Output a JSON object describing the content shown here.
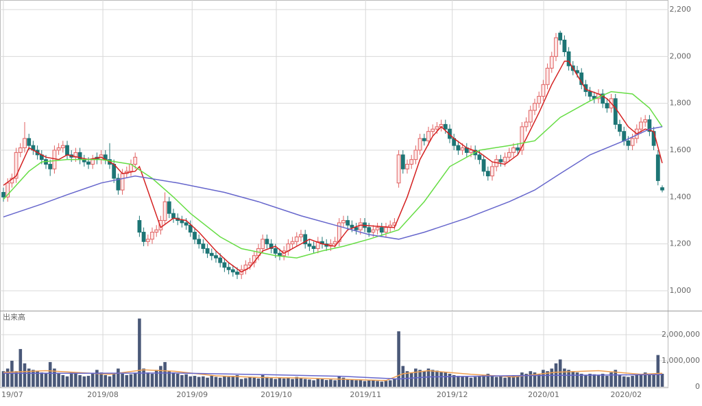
{
  "chart_data": {
    "type": "candlestick",
    "ylim": [
      915,
      2241
    ],
    "yticks": [
      {
        "value": 1000,
        "label": "1,000"
      },
      {
        "value": 1200,
        "label": "1,200"
      },
      {
        "value": 1400,
        "label": "1,400"
      },
      {
        "value": 1600,
        "label": "1,600"
      },
      {
        "value": 1800,
        "label": "1,800"
      },
      {
        "value": 2000,
        "label": "2,000"
      },
      {
        "value": 2200,
        "label": "2,200"
      }
    ],
    "xticks": [
      {
        "value": 0,
        "label": "19/07"
      },
      {
        "value": 23.4,
        "label": "2019/08"
      },
      {
        "value": 44.4,
        "label": "2019/09"
      },
      {
        "value": 64.2,
        "label": "2019/10"
      },
      {
        "value": 85.2,
        "label": "2019/11"
      },
      {
        "value": 105.6,
        "label": "2019/12"
      },
      {
        "value": 127.1,
        "label": "2020/01"
      },
      {
        "value": 146.5,
        "label": "2020/02"
      }
    ],
    "grid": true,
    "up_color": "#e06060",
    "down_color": "#1d7575",
    "open": [
      1420,
      1400,
      1460,
      1480,
      1590,
      1610,
      1650,
      1620,
      1600,
      1580,
      1560,
      1540,
      1520,
      1600,
      1610,
      1620,
      1580,
      1570,
      1590,
      1560,
      1550,
      1540,
      1570,
      1560,
      1580,
      1560,
      1540,
      1480,
      1430,
      1500,
      1510,
      1540,
      1300,
      1250,
      1210,
      1220,
      1250,
      1260,
      1300,
      1380,
      1330,
      1310,
      1300,
      1290,
      1280,
      1250,
      1220,
      1200,
      1180,
      1160,
      1150,
      1140,
      1120,
      1100,
      1090,
      1080,
      1070,
      1090,
      1110,
      1120,
      1150,
      1180,
      1220,
      1200,
      1180,
      1160,
      1150,
      1170,
      1200,
      1210,
      1230,
      1240,
      1200,
      1190,
      1180,
      1210,
      1200,
      1190,
      1200,
      1210,
      1290,
      1300,
      1280,
      1270,
      1260,
      1290,
      1270,
      1250,
      1260,
      1270,
      1250,
      1270,
      1280,
      1460,
      1580,
      1520,
      1540,
      1560,
      1600,
      1650,
      1640,
      1680,
      1690,
      1700,
      1710,
      1690,
      1650,
      1620,
      1600,
      1610,
      1590,
      1600,
      1580,
      1560,
      1510,
      1490,
      1530,
      1560,
      1550,
      1570,
      1590,
      1610,
      1600,
      1700,
      1720,
      1770,
      1800,
      1830,
      1880,
      1950,
      2000,
      2100,
      2070,
      2020,
      1960,
      1940,
      1930,
      1880,
      1850,
      1830,
      1820,
      1840,
      1800,
      1780,
      1820,
      1710,
      1680,
      1640,
      1620,
      1650,
      1690,
      1720,
      1730,
      1680,
      1580,
      1440
    ],
    "high": [
      1440,
      1480,
      1500,
      1610,
      1630,
      1720,
      1670,
      1640,
      1620,
      1600,
      1580,
      1560,
      1620,
      1630,
      1640,
      1640,
      1600,
      1610,
      1610,
      1580,
      1570,
      1580,
      1590,
      1600,
      1600,
      1630,
      1560,
      1500,
      1520,
      1530,
      1560,
      1590,
      1320,
      1270,
      1240,
      1270,
      1280,
      1320,
      1420,
      1400,
      1350,
      1330,
      1320,
      1310,
      1300,
      1270,
      1240,
      1220,
      1200,
      1180,
      1170,
      1160,
      1140,
      1120,
      1110,
      1100,
      1110,
      1130,
      1140,
      1170,
      1200,
      1240,
      1240,
      1220,
      1200,
      1180,
      1190,
      1220,
      1230,
      1250,
      1260,
      1260,
      1220,
      1210,
      1230,
      1230,
      1220,
      1220,
      1230,
      1310,
      1320,
      1320,
      1300,
      1290,
      1310,
      1310,
      1290,
      1280,
      1290,
      1290,
      1290,
      1300,
      1310,
      1600,
      1600,
      1560,
      1580,
      1620,
      1670,
      1670,
      1700,
      1710,
      1720,
      1730,
      1730,
      1710,
      1670,
      1640,
      1630,
      1630,
      1620,
      1620,
      1600,
      1580,
      1530,
      1550,
      1580,
      1580,
      1590,
      1610,
      1630,
      1630,
      1720,
      1740,
      1790,
      1820,
      1850,
      1900,
      1970,
      2020,
      2100,
      2110,
      2090,
      2040,
      1980,
      1960,
      1950,
      1900,
      1870,
      1850,
      1860,
      1860,
      1820,
      1840,
      1840,
      1730,
      1700,
      1660,
      1670,
      1710,
      1740,
      1750,
      1750,
      1700,
      1600,
      1450
    ],
    "low": [
      1380,
      1380,
      1440,
      1460,
      1570,
      1590,
      1600,
      1580,
      1560,
      1540,
      1520,
      1490,
      1500,
      1580,
      1590,
      1560,
      1550,
      1550,
      1540,
      1530,
      1520,
      1520,
      1540,
      1540,
      1540,
      1520,
      1460,
      1410,
      1410,
      1480,
      1490,
      1520,
      1230,
      1190,
      1190,
      1200,
      1230,
      1240,
      1280,
      1310,
      1290,
      1280,
      1270,
      1260,
      1230,
      1200,
      1180,
      1160,
      1140,
      1130,
      1120,
      1100,
      1080,
      1070,
      1060,
      1050,
      1050,
      1070,
      1090,
      1100,
      1130,
      1160,
      1180,
      1160,
      1140,
      1130,
      1130,
      1150,
      1180,
      1190,
      1210,
      1180,
      1170,
      1160,
      1160,
      1180,
      1170,
      1170,
      1180,
      1190,
      1270,
      1260,
      1250,
      1240,
      1240,
      1250,
      1230,
      1230,
      1240,
      1230,
      1230,
      1250,
      1260,
      1440,
      1500,
      1500,
      1520,
      1540,
      1580,
      1620,
      1620,
      1660,
      1670,
      1680,
      1670,
      1630,
      1600,
      1580,
      1580,
      1570,
      1570,
      1560,
      1540,
      1490,
      1470,
      1470,
      1510,
      1530,
      1530,
      1550,
      1570,
      1580,
      1580,
      1680,
      1700,
      1750,
      1780,
      1810,
      1860,
      1930,
      1980,
      2050,
      2000,
      1940,
      1920,
      1910,
      1860,
      1830,
      1810,
      1800,
      1800,
      1780,
      1760,
      1760,
      1690,
      1660,
      1620,
      1600,
      1600,
      1630,
      1670,
      1700,
      1660,
      1600,
      1450,
      1420
    ],
    "close": [
      1400,
      1460,
      1480,
      1590,
      1610,
      1650,
      1620,
      1600,
      1580,
      1560,
      1540,
      1520,
      1600,
      1610,
      1620,
      1580,
      1570,
      1590,
      1560,
      1550,
      1540,
      1560,
      1560,
      1580,
      1560,
      1540,
      1480,
      1430,
      1500,
      1510,
      1540,
      1570,
      1250,
      1210,
      1220,
      1250,
      1260,
      1300,
      1380,
      1330,
      1310,
      1300,
      1290,
      1280,
      1250,
      1220,
      1200,
      1180,
      1160,
      1150,
      1140,
      1120,
      1100,
      1090,
      1080,
      1070,
      1090,
      1110,
      1120,
      1150,
      1180,
      1220,
      1200,
      1180,
      1160,
      1150,
      1170,
      1200,
      1210,
      1230,
      1240,
      1200,
      1190,
      1180,
      1210,
      1200,
      1190,
      1200,
      1210,
      1290,
      1300,
      1280,
      1270,
      1260,
      1290,
      1270,
      1250,
      1260,
      1270,
      1250,
      1270,
      1280,
      1290,
      1580,
      1520,
      1540,
      1560,
      1600,
      1650,
      1640,
      1680,
      1690,
      1700,
      1710,
      1690,
      1650,
      1620,
      1600,
      1610,
      1590,
      1600,
      1580,
      1560,
      1510,
      1490,
      1530,
      1560,
      1550,
      1570,
      1590,
      1610,
      1600,
      1700,
      1720,
      1770,
      1800,
      1830,
      1880,
      1950,
      2000,
      2080,
      2070,
      2020,
      1960,
      1940,
      1930,
      1880,
      1850,
      1830,
      1820,
      1840,
      1800,
      1780,
      1820,
      1710,
      1680,
      1640,
      1620,
      1650,
      1690,
      1720,
      1730,
      1680,
      1620,
      1470,
      1430
    ],
    "moving_averages": [
      {
        "color": "#d42020",
        "x": [
          0,
          3,
          6,
          10,
          13,
          15,
          20,
          23,
          26,
          28,
          31,
          32,
          37,
          40,
          43,
          46,
          50,
          53,
          56,
          58,
          61,
          64,
          66,
          69,
          72,
          75,
          78,
          81,
          84,
          88,
          92,
          95,
          98,
          101,
          103,
          106,
          109,
          112,
          115,
          118,
          121,
          123,
          126,
          129,
          132,
          133,
          135,
          137,
          140,
          142,
          144,
          147,
          149,
          151,
          153,
          155
        ],
        "values": [
          1450,
          1490,
          1610,
          1570,
          1560,
          1580,
          1560,
          1570,
          1540,
          1500,
          1510,
          1530,
          1270,
          1310,
          1300,
          1250,
          1170,
          1120,
          1080,
          1100,
          1170,
          1190,
          1160,
          1190,
          1220,
          1200,
          1190,
          1260,
          1280,
          1275,
          1270,
          1400,
          1560,
          1660,
          1700,
          1650,
          1610,
          1590,
          1550,
          1540,
          1580,
          1650,
          1760,
          1880,
          1980,
          1980,
          1920,
          1860,
          1840,
          1820,
          1780,
          1700,
          1670,
          1690,
          1680,
          1545
        ]
      },
      {
        "color": "#66dd44",
        "x": [
          0,
          6,
          9,
          15,
          23,
          30,
          35,
          40,
          44,
          51,
          56,
          64,
          69,
          75,
          80,
          86,
          93,
          99,
          105,
          112,
          119,
          125,
          131,
          138,
          143,
          148,
          152,
          155
        ],
        "values": [
          1390,
          1510,
          1550,
          1560,
          1560,
          1540,
          1480,
          1400,
          1330,
          1230,
          1180,
          1150,
          1140,
          1170,
          1190,
          1220,
          1260,
          1380,
          1530,
          1600,
          1620,
          1640,
          1740,
          1810,
          1850,
          1840,
          1780,
          1700
        ]
      },
      {
        "color": "#6666cc",
        "x": [
          0,
          9,
          15,
          23,
          31,
          41,
          52,
          60,
          70,
          80,
          86,
          93,
          99,
          109,
          119,
          125,
          131,
          138,
          146,
          152,
          155
        ],
        "values": [
          1315,
          1370,
          1410,
          1460,
          1490,
          1460,
          1420,
          1380,
          1320,
          1270,
          1240,
          1220,
          1250,
          1310,
          1380,
          1430,
          1500,
          1580,
          1640,
          1690,
          1700
        ]
      }
    ],
    "volume": {
      "label": "出来高",
      "color": "#4a5878",
      "ylim": [
        0,
        2870000
      ],
      "yticks": [
        0,
        {
          "value": 1000000,
          "label": "1,000,000"
        },
        {
          "value": 2000000,
          "label": "2,000,000"
        }
      ],
      "values": [
        600000,
        700000,
        1000000,
        600000,
        1450000,
        900000,
        700000,
        650000,
        600000,
        550000,
        500000,
        950000,
        700000,
        500000,
        450000,
        400000,
        550000,
        500000,
        450000,
        400000,
        420000,
        500000,
        650000,
        550000,
        450000,
        400000,
        500000,
        700000,
        500000,
        450000,
        480000,
        520000,
        2620000,
        700000,
        550000,
        500000,
        650000,
        800000,
        950000,
        600000,
        550000,
        500000,
        450000,
        480000,
        400000,
        420000,
        380000,
        400000,
        350000,
        420000,
        380000,
        350000,
        400000,
        380000,
        420000,
        450000,
        300000,
        330000,
        380000,
        350000,
        320000,
        450000,
        380000,
        330000,
        300000,
        350000,
        320000,
        340000,
        300000,
        380000,
        350000,
        300000,
        280000,
        250000,
        320000,
        300000,
        260000,
        280000,
        250000,
        400000,
        350000,
        300000,
        280000,
        250000,
        270000,
        220000,
        240000,
        260000,
        220000,
        200000,
        230000,
        250000,
        300000,
        2130000,
        800000,
        600000,
        550000,
        700000,
        650000,
        600000,
        700000,
        650000,
        620000,
        580000,
        550000,
        500000,
        450000,
        420000,
        400000,
        380000,
        350000,
        380000,
        400000,
        450000,
        500000,
        420000,
        380000,
        400000,
        350000,
        380000,
        420000,
        400000,
        550000,
        500000,
        600000,
        550000,
        500000,
        650000,
        600000,
        700000,
        900000,
        1050000,
        700000,
        650000,
        600000,
        550000,
        500000,
        450000,
        500000,
        480000,
        450000,
        500000,
        420000,
        550000,
        650000,
        450000,
        400000,
        380000,
        420000,
        450000,
        500000,
        550000,
        450000,
        500000,
        1220000,
        500000
      ],
      "moving_averages": [
        {
          "color": "#f0a050",
          "x": [
            0,
            10,
            25,
            33,
            40,
            50,
            60,
            70,
            80,
            90,
            94,
            100,
            110,
            120,
            130,
            140,
            150,
            155
          ],
          "values": [
            550000,
            620000,
            480000,
            650000,
            600000,
            420000,
            360000,
            340000,
            290000,
            240000,
            500000,
            620000,
            480000,
            380000,
            560000,
            620000,
            480000,
            520000
          ]
        },
        {
          "color": "#6666cc",
          "x": [
            0,
            20,
            40,
            60,
            80,
            93,
            100,
            120,
            140,
            155
          ],
          "values": [
            520000,
            520000,
            530000,
            470000,
            400000,
            300000,
            380000,
            430000,
            450000,
            470000
          ]
        }
      ]
    }
  }
}
